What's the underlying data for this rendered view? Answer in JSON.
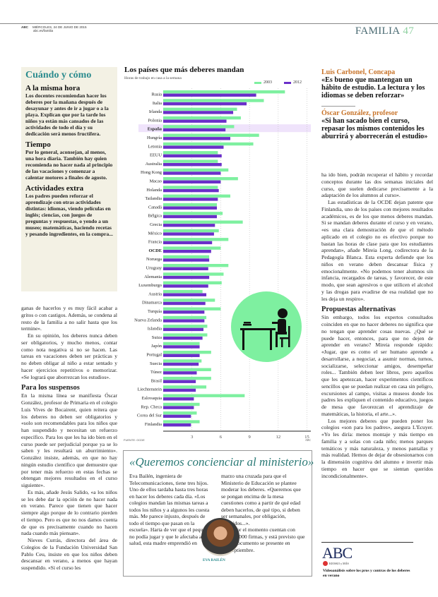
{
  "header": {
    "brand": "ABC",
    "date": "MIÉRCOLES, 24 DE JUNIO DE 2015",
    "url": "abc.es/familia",
    "section": "FAMILIA",
    "page": "47"
  },
  "sidebar": {
    "title": "Cuándo y cómo",
    "items": [
      {
        "heading": "A la misma hora",
        "text": "Los docentes recomiendan hacer los deberes por la mañana después de desayunar y antes de ir a jugar o a la playa. Explican que por la tarde los niños ya están más cansados de las actividades de todo el día y su dedicación será menos fructífera."
      },
      {
        "heading": "Tiempo",
        "text": "Por lo general, aconsejan, al menos, una hora diaria. También hay quien recomienda no hacer nada al principio de las vacaciones y comenzar a calentar motores a finales de agosto."
      },
      {
        "heading": "Actividades extra",
        "text": "Los padres pueden reforzar el aprendizaje con otras actividades distintas: idiomas, viendo películas en inglés; ciencias, con juegos de preguntas y respuestas, o yendo a un museo; matemáticas, haciendo recetas y pesando ingredientes, en la compra..."
      }
    ]
  },
  "left_article": {
    "p1": "ganas de hacerlos y es muy fácil acabar a gritos o con castigos. Además, se condena al resto de la familia a no salir hasta que los termine».",
    "p2": "En su opinión, los deberes nunca deben ser obligatorios, y mucho menos, contar como nota negativa si no se hacen. Las tareas en vacaciones deben ser prácticas y no deben obligar al niño a estar sentado y hacer ejercicios repetitivos o memorizar. «Se logrará que aborrezcan los estudios».",
    "heading": "Para los suspensos",
    "p3": "En la misma línea se manifiesta Óscar González, profesor de Primaria en el colegio Luis Vives de Bocairent, quien reitera que los deberes no deben ser obligatorios y «solo son recomendables para los niños que han suspendido y necesitan un refuerzo específico. Para los que les ha ido bien en el curso puede ser perjudicial porque ya se lo saben y les resultará un aburrimiento». González insiste, además, en que no hay ningún estudio científico que demuestre que por tener más refuerzo en estas fechas se obtengan mejores resultados en el curso siguiente».",
    "p4": "Es más, añade Jesús Salido, «a los niños se les debe dar la opción de no hacer nada en verano. Parece que tienen que hacer siempre algo porque de lo contrario pierden el tiempo. Pero es que no nos damos cuenta de que es precisamente cuando no hacen nada cuando más piensan».",
    "p5": "Nieves Currás, directora del área de Colegios de la Fundación Universidad San Pablo Ceu, insiste en que los niños deben descansar en verano, a menos que hayan suspendido. «Si el curso les"
  },
  "quotes": [
    {
      "name": "Luis Carbonel, Concapa",
      "text": "«Es bueno que mantengan un hábito de estudio. La lectura y los idiomas se deben reforzar»"
    },
    {
      "name": "Óscar González, profesor",
      "text": "«Si han sacado bien el curso, repasar los mismos contenidos les aburrirá y aborrecerán el estudio»"
    }
  ],
  "right_article": {
    "p1": "ha ido bien, podrán recuperar el hábito y recordar conceptos durante las dos semanas iniciales del curso, que suelen dedicarse precisamente a la adaptación de los alumnos al curso».",
    "p2": "Las estadísticas de la OCDE dejan patente que Finlandia, uno de los países con mejores resultados académicos, es de los que menos deberes mandan. Si se mandan deberes durante el curso y en verano, «es una clara demostración de que el método aplicado en el colegio no es efectivo porque no bastan las horas de clase para que los estudiantes aprendan», añade Mireia Long, codirectora de la Pedagogía Blanca. Esta experta defiende que los niños en verano deben descansar física y emocionalmente. «No podemos tener alumnos sin infancia, recargados de tareas, y favorecer, de este modo, que sean agresivos o que utilicen el alcohol y las drogas para evadirse de esa realidad que no les deja un respiro».",
    "heading": "Propuestas alternativas",
    "p3": "Sin embargo, todos los expertos consultados coinciden en que no hacer deberes no significa que no tengan que aprender cosas nuevas. ¿Qué se puede hacer, entonces, para que no dejen de aprender en verano? Mireia responde rápido: «Jugar, que es como el ser humano aprende a desarrollarse, a negociar, a asumir normas, turnos, socializarse, seleccionar amigos, desempeñar roles... También deben leer libros, pero aquellos que les apetezcan, hacer experimentos científicos sencillos que se puedan realizar en casa sin peligro, excursiones al campo, visitas a museos donde los padres les expliquen el contenido educativo, juegos de mesa que favorezcan el aprendizaje de matemáticas, la historia, el arte...».",
    "p4": "Los mejores deberes que pueden poner los colegios «son para los padres», asegura L'Ecuyer. «Yo les diría: menos montaje y más tiempo en familia y a solas con cada niño; menos parques temáticos y más naturaleza, y menos pantallas y más realidad. Hemos de dejar de obsesionarnos con la dimensión cognitiva del alumno e invertir más tiempo en hacer que se sientan queridos incondicionalmente»."
  },
  "promo": {
    "logo": "ABC",
    "kiosko": "KIOSKO y MÁS",
    "caption": "Videoanálisis sobre los pros y contras de los deberes en verano"
  },
  "box": {
    "title": "«Queremos concienciar al ministerio»",
    "col1": "Eva Bailén, ingeniera de Telecomunicaciones, tiene tres hijos. Uno de ellos tardaba hasta tres horas en hacer los deberes cada día. «Los colegios mandan las mismas tareas a todos los niños y a algunos les cuesta más. Me parece injusto, después de todo el tiempo que pasan en la escuela». Harta de ver que el pequeño no podía jugar y que le afectaba a su salud, esta madre emprendió en",
    "col2a": "marzo una cruzada para que el Ministerio de Educación se plantee moderar los deberes. «Queremos que se pongan encima de la mesa cuestiones como a partir de qué edad deben hacerlos, de qué tipo, si deben ser semanales, por obligación, sugeridos...».",
    "col2b": "Por el momento cuentan con 105.000 firmas, y está previsto que el documento se presente en septiembre.",
    "photo_caption": "EVA BAILÉN"
  },
  "chart_data": {
    "type": "bar",
    "orientation": "horizontal",
    "title": "Los países que más deberes mandan",
    "subtitle": "Horas de trabajo en casa a la semana",
    "source": "FUENTE: OCDE",
    "credit": "ABC",
    "categories": [
      "Rusia",
      "Italia",
      "Irlanda",
      "Polonia",
      "España",
      "Hungría",
      "Letonia",
      "EEUU",
      "Australia",
      "Hong Kong",
      "Macao",
      "Holanda",
      "Tailandia",
      "Canadá",
      "Bélgica",
      "Grecia",
      "México",
      "Francia",
      "OCDE",
      "Noruega",
      "Uruguay",
      "Alemania",
      "Luxemburgo",
      "Austria",
      "Dinamarca",
      "Turquía",
      "Nueva Zelanda",
      "Islandia",
      "Suiza",
      "Japón",
      "Portugal",
      "Suecia",
      "Túnez",
      "Brasil",
      "Liechtenstein",
      "Eslovaquia",
      "Rep. Checa",
      "Corea del Sur",
      "Finlandia"
    ],
    "highlight": "España",
    "bold": [
      "España",
      "OCDE"
    ],
    "series": [
      {
        "name": "2003",
        "color": "#7ef0a0",
        "values": [
          12.7,
          10.5,
          7.7,
          8.1,
          7.4,
          10.0,
          9.4,
          5.7,
          5.7,
          6.8,
          7.8,
          5.7,
          7.0,
          5.6,
          6.2,
          8.3,
          5.8,
          6.8,
          6.0,
          4.8,
          6.8,
          6.3,
          6.1,
          4.1,
          5.4,
          6.0,
          4.5,
          4.6,
          4.6,
          3.8,
          5.0,
          4.0,
          5.0,
          5.0,
          4.5,
          8.5,
          3.8,
          3.5,
          3.8
        ]
      },
      {
        "name": "2012",
        "color": "#6a2fc9",
        "values": [
          9.7,
          8.7,
          7.3,
          6.6,
          6.5,
          7.0,
          6.3,
          6.1,
          6.1,
          6.0,
          6.0,
          5.8,
          5.7,
          5.6,
          5.6,
          5.4,
          5.3,
          5.1,
          5.0,
          4.8,
          4.7,
          4.8,
          4.7,
          4.5,
          4.4,
          4.3,
          4.3,
          4.2,
          4.1,
          3.8,
          3.8,
          3.7,
          3.5,
          3.4,
          3.4,
          3.2,
          3.2,
          2.9,
          2.9
        ]
      }
    ],
    "xticks": [
      3,
      6,
      9,
      12,
      15
    ],
    "xlim": [
      0,
      15
    ],
    "grid": true,
    "legend": "top-right",
    "highlight_color": "#efe3fb",
    "illustration": "student-at-desk-icon",
    "illustration_color": "#7ef0a0"
  }
}
